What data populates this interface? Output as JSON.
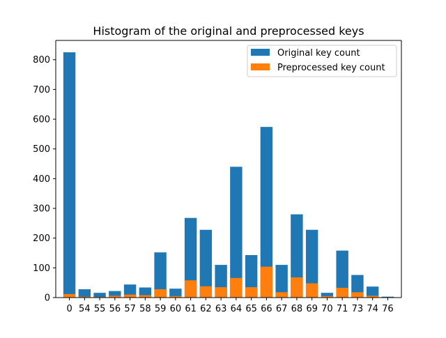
{
  "chart_data": {
    "type": "bar",
    "title": "Histogram of the original and preprocessed keys",
    "xlabel": "",
    "ylabel": "",
    "categories": [
      "0",
      "54",
      "55",
      "56",
      "57",
      "58",
      "59",
      "60",
      "61",
      "62",
      "63",
      "64",
      "65",
      "66",
      "67",
      "68",
      "69",
      "70",
      "71",
      "73",
      "74",
      "76"
    ],
    "series": [
      {
        "name": "Original key count",
        "color": "#1f77b4",
        "values": [
          825,
          28,
          16,
          22,
          44,
          34,
          152,
          30,
          268,
          228,
          110,
          440,
          143,
          574,
          110,
          280,
          228,
          16,
          158,
          76,
          37,
          3
        ]
      },
      {
        "name": "Preprocessed key count",
        "color": "#ff7f0e",
        "values": [
          12,
          3,
          2,
          6,
          10,
          8,
          28,
          5,
          58,
          38,
          35,
          66,
          35,
          104,
          18,
          68,
          48,
          5,
          33,
          18,
          6,
          1
        ]
      }
    ],
    "ylim": [
      0,
      865
    ],
    "yticks": [
      0,
      100,
      200,
      300,
      400,
      500,
      600,
      700,
      800
    ],
    "legend_position": "top-right",
    "grid": false
  }
}
